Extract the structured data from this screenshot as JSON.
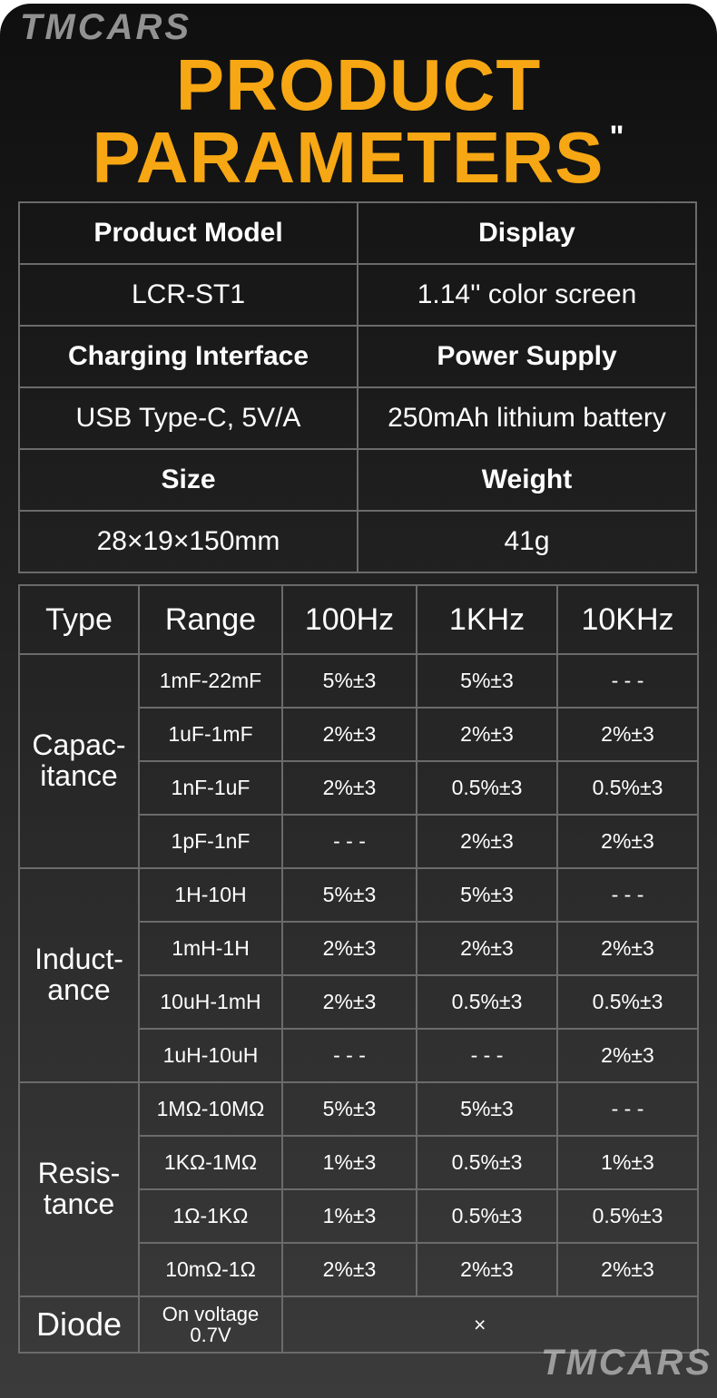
{
  "title": {
    "line1": "PRODUCT",
    "line2": "PARAMETERS",
    "quote_mark": "\""
  },
  "colors": {
    "accent": "#f6a713",
    "background": "#1c1c1c",
    "grid": "#6b6b6b"
  },
  "watermark": "TMCARS",
  "specs": [
    {
      "label": "Product Model",
      "value": "LCR-ST1"
    },
    {
      "label": "Display",
      "value": "1.14'' color screen"
    },
    {
      "label": "Charging Interface",
      "value": "USB Type-C, 5V/A"
    },
    {
      "label": "Power Supply",
      "value": "250mAh lithium battery"
    },
    {
      "label": "Size",
      "value": "28×19×150mm"
    },
    {
      "label": "Weight",
      "value": "41g"
    }
  ],
  "accuracy": {
    "headers": [
      "Type",
      "Range",
      "100Hz",
      "1KHz",
      "10KHz"
    ],
    "groups": [
      {
        "type": "Capac-\nitance",
        "rows": [
          {
            "range": "1mF-22mF",
            "v": [
              "5%±3",
              "5%±3",
              "- - -"
            ]
          },
          {
            "range": "1uF-1mF",
            "v": [
              "2%±3",
              "2%±3",
              "2%±3"
            ]
          },
          {
            "range": "1nF-1uF",
            "v": [
              "2%±3",
              "0.5%±3",
              "0.5%±3"
            ]
          },
          {
            "range": "1pF-1nF",
            "v": [
              "- - -",
              "2%±3",
              "2%±3"
            ]
          }
        ]
      },
      {
        "type": "Induct-\nance",
        "rows": [
          {
            "range": "1H-10H",
            "v": [
              "5%±3",
              "5%±3",
              "- - -"
            ]
          },
          {
            "range": "1mH-1H",
            "v": [
              "2%±3",
              "2%±3",
              "2%±3"
            ]
          },
          {
            "range": "10uH-1mH",
            "v": [
              "2%±3",
              "0.5%±3",
              "0.5%±3"
            ]
          },
          {
            "range": "1uH-10uH",
            "v": [
              "- - -",
              "- - -",
              "2%±3"
            ]
          }
        ]
      },
      {
        "type": "Resis-\ntance",
        "rows": [
          {
            "range": "1MΩ-10MΩ",
            "v": [
              "5%±3",
              "5%±3",
              "- - -"
            ]
          },
          {
            "range": "1KΩ-1MΩ",
            "v": [
              "1%±3",
              "0.5%±3",
              "1%±3"
            ]
          },
          {
            "range": "1Ω-1KΩ",
            "v": [
              "1%±3",
              "0.5%±3",
              "0.5%±3"
            ]
          },
          {
            "range": "10mΩ-1Ω",
            "v": [
              "2%±3",
              "2%±3",
              "2%±3"
            ]
          }
        ]
      }
    ],
    "diode": {
      "type": "Diode",
      "range": "On voltage\n0.7V",
      "value": "×"
    }
  }
}
